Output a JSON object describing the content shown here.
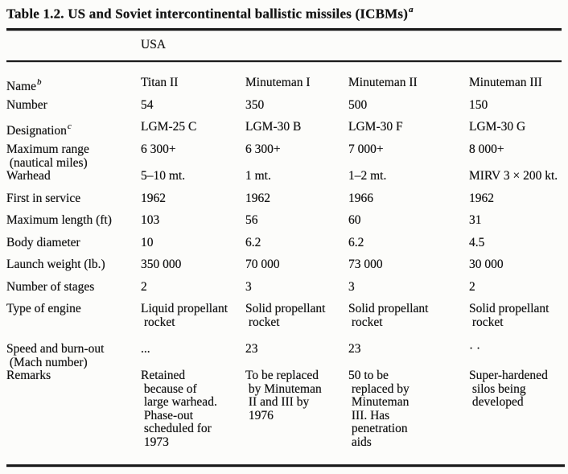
{
  "title": {
    "text": "Table 1.2. US and Soviet intercontinental ballistic missiles (ICBMs)",
    "superscript": "a"
  },
  "colors": {
    "paper": "#fcfcfa",
    "ink": "#141414",
    "rule": "#1a1a1a"
  },
  "table": {
    "group_header": "USA",
    "rows": [
      {
        "label": "Name",
        "sup": "b",
        "values": [
          "Titan II",
          "Minuteman I",
          "Minuteman II",
          "Minuteman III"
        ]
      },
      {
        "label": "Number",
        "values": [
          "54",
          "350",
          "500",
          "150"
        ]
      },
      {
        "label": "Designation",
        "sup": "c",
        "values": [
          "LGM-25 C",
          "LGM-30 B",
          "LGM-30 F",
          "LGM-30 G"
        ]
      },
      {
        "label": "Maximum range\n (nautical miles)",
        "values": [
          "6 300+",
          "6 300+",
          "7 000+",
          "8 000+"
        ]
      },
      {
        "label": "Warhead",
        "values": [
          "5–10 mt.",
          "1 mt.",
          "1–2 mt.",
          "MIRV 3 × 200 kt."
        ]
      },
      {
        "label": "First in service",
        "values": [
          "1962",
          "1962",
          "1966",
          "1962"
        ]
      },
      {
        "label": "Maximum length (ft)",
        "values": [
          "103",
          "56",
          "60",
          "31"
        ]
      },
      {
        "label": "Body diameter",
        "values": [
          "10",
          "6.2",
          "6.2",
          "4.5"
        ]
      },
      {
        "label": "Launch weight (lb.)",
        "values": [
          "350 000",
          "70 000",
          "73 000",
          "30 000"
        ]
      },
      {
        "label": "Number of stages",
        "values": [
          "2",
          "3",
          "3",
          "2"
        ]
      },
      {
        "label": "Type of engine",
        "values": [
          "Liquid propellant\n rocket",
          "Solid propellant\n rocket",
          "Solid propellant\n rocket",
          "Solid propellant\n rocket"
        ]
      },
      {
        "label": "Speed and burn-out\n (Mach number)",
        "values": [
          "...",
          "23",
          "23",
          "· ·"
        ]
      },
      {
        "label": "Remarks",
        "values": [
          "Retained\n because of\n large warhead.\n Phase-out\n scheduled for\n 1973",
          "To be replaced\n by Minuteman\n II and III by\n 1976",
          "50 to be\n replaced by\n Minuteman\n III. Has\n penetration\n aids",
          "Super-hardened\n silos being\n developed"
        ]
      }
    ]
  }
}
